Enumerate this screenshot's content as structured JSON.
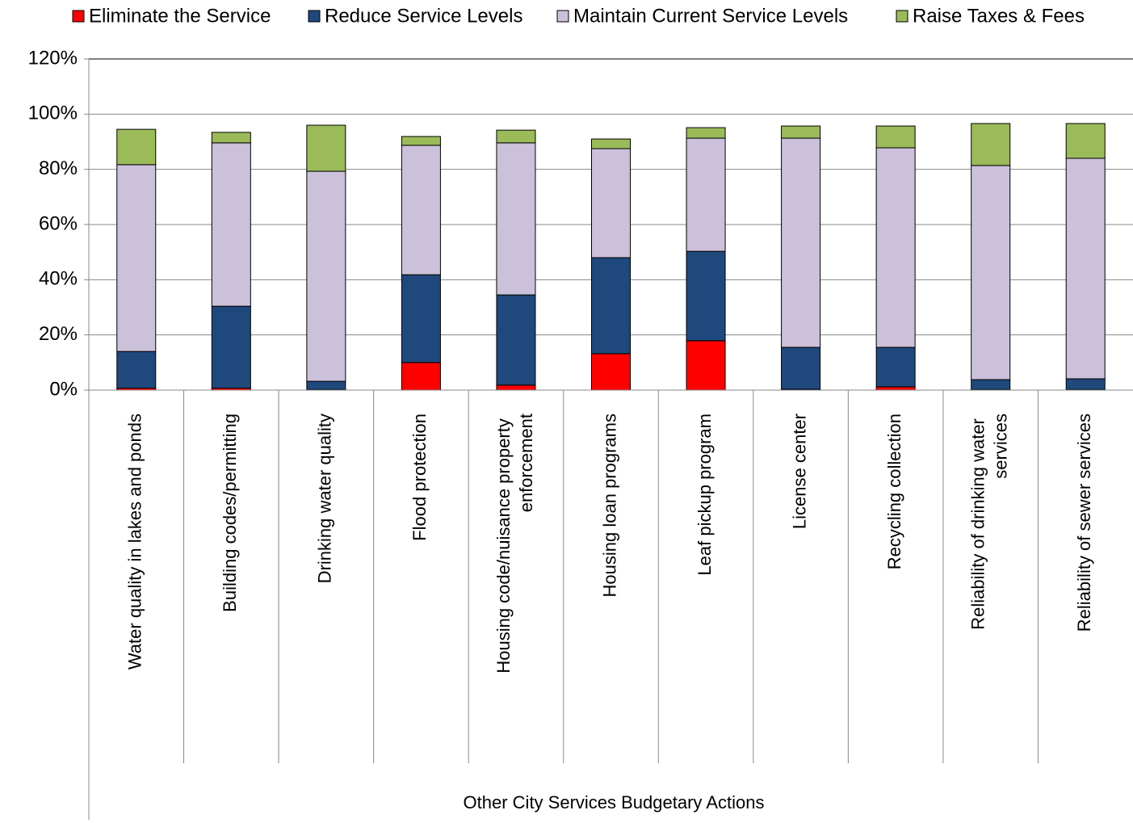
{
  "chart_data": {
    "type": "stacked_bar",
    "x_label": "Other City Services Budgetary Actions",
    "categories": [
      "Water quality in lakes and ponds",
      "Building codes/permitting",
      "Drinking water quality",
      "Flood protection",
      "Housing code/nuisance property enforcement",
      "Housing loan programs",
      "Leaf pickup program",
      "License center",
      "Recycling collection",
      "Reliability of drinking water services",
      "Reliability of sewer services"
    ],
    "series": [
      {
        "name": "Eliminate the Service",
        "color": "#ff0000",
        "values": [
          0.7,
          0.7,
          0.2,
          10.0,
          1.8,
          13.2,
          17.9,
          0.3,
          1.2,
          0.2,
          0.2
        ]
      },
      {
        "name": "Reduce Service Levels",
        "color": "#1f497d",
        "values": [
          13.3,
          29.7,
          3.0,
          31.8,
          32.7,
          34.8,
          32.4,
          15.2,
          14.3,
          3.6,
          3.9
        ]
      },
      {
        "name": "Maintain Current Service Levels",
        "color": "#ccc1da",
        "values": [
          67.7,
          59.2,
          76.1,
          46.9,
          55.1,
          39.5,
          41.0,
          75.8,
          72.3,
          77.6,
          79.9
        ]
      },
      {
        "name": "Raise Taxes & Fees",
        "color": "#9bbb59",
        "values": [
          12.8,
          3.8,
          16.7,
          3.2,
          4.6,
          3.5,
          3.8,
          4.4,
          7.9,
          15.2,
          12.6
        ]
      }
    ],
    "ylim": [
      0,
      120
    ],
    "yticks": [
      {
        "value": 0,
        "label": "0%"
      },
      {
        "value": 20,
        "label": "20%"
      },
      {
        "value": 40,
        "label": "40%"
      },
      {
        "value": 60,
        "label": "60%"
      },
      {
        "value": 80,
        "label": "80%"
      },
      {
        "value": 100,
        "label": "100%"
      },
      {
        "value": 120,
        "label": "120%"
      }
    ],
    "grid": true,
    "legend": "top"
  }
}
